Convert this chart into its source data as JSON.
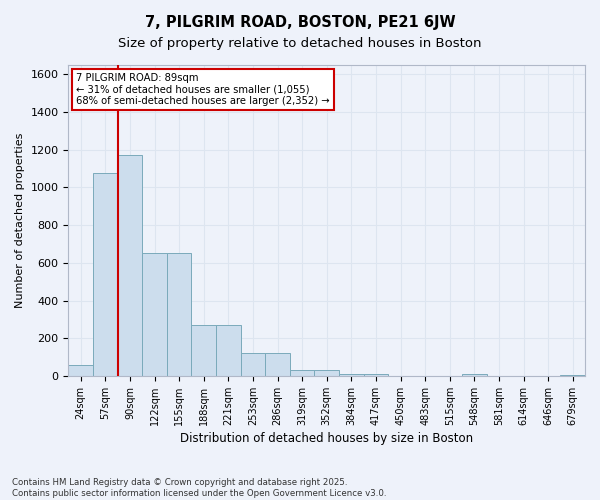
{
  "title_line1": "7, PILGRIM ROAD, BOSTON, PE21 6JW",
  "title_line2": "Size of property relative to detached houses in Boston",
  "xlabel": "Distribution of detached houses by size in Boston",
  "ylabel": "Number of detached properties",
  "categories": [
    "24sqm",
    "57sqm",
    "90sqm",
    "122sqm",
    "155sqm",
    "188sqm",
    "221sqm",
    "253sqm",
    "286sqm",
    "319sqm",
    "352sqm",
    "384sqm",
    "417sqm",
    "450sqm",
    "483sqm",
    "515sqm",
    "548sqm",
    "581sqm",
    "614sqm",
    "646sqm",
    "679sqm"
  ],
  "values": [
    57,
    1075,
    1175,
    650,
    650,
    270,
    270,
    120,
    120,
    30,
    30,
    12,
    12,
    0,
    0,
    0,
    12,
    0,
    0,
    0,
    5
  ],
  "bar_color": "#ccdded",
  "bar_edge_color": "#7aaabb",
  "annotation_line1": "7 PILGRIM ROAD: 89sqm",
  "annotation_line2": "← 31% of detached houses are smaller (1,055)",
  "annotation_line3": "68% of semi-detached houses are larger (2,352) →",
  "annotation_box_color": "#ffffff",
  "annotation_box_edge": "#cc0000",
  "red_line_x": 1.5,
  "ylim": [
    0,
    1650
  ],
  "yticks": [
    0,
    200,
    400,
    600,
    800,
    1000,
    1200,
    1400,
    1600
  ],
  "grid_color": "#dde5f0",
  "background_color": "#eef2fa",
  "footnote_line1": "Contains HM Land Registry data © Crown copyright and database right 2025.",
  "footnote_line2": "Contains public sector information licensed under the Open Government Licence v3.0.",
  "title_fontsize": 10.5,
  "subtitle_fontsize": 9.5
}
